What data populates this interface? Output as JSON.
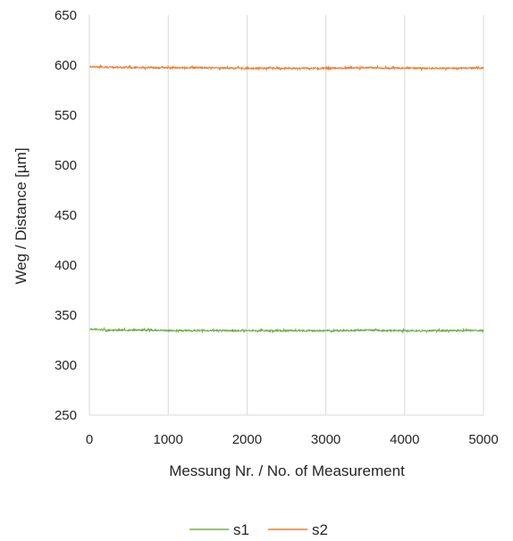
{
  "chart_data": {
    "type": "line",
    "title": "",
    "xlabel": "Messung Nr. / No. of Measurement",
    "ylabel": "Weg / Distance [µm]",
    "xlim": [
      0,
      5000
    ],
    "ylim": [
      250,
      650
    ],
    "xticks": [
      0,
      1000,
      2000,
      3000,
      4000,
      5000
    ],
    "yticks": [
      250,
      300,
      350,
      400,
      450,
      500,
      550,
      600,
      650
    ],
    "grid": "vertical",
    "legend": "bottom",
    "series": [
      {
        "name": "s1",
        "color": "#70ad47",
        "x": [
          0,
          250,
          500,
          750,
          1000,
          1250,
          1500,
          1750,
          2000,
          2250,
          2500,
          2750,
          3000,
          3250,
          3500,
          3750,
          4000,
          4250,
          4500,
          4750,
          5000
        ],
        "y": [
          336,
          335,
          335,
          335,
          334.5,
          334.5,
          334.5,
          334.5,
          334.5,
          334.5,
          334.5,
          334.5,
          334.5,
          334.5,
          335,
          334.5,
          334.5,
          334.5,
          334.5,
          334.5,
          334.5
        ]
      },
      {
        "name": "s2",
        "color": "#ed7d31",
        "x": [
          0,
          250,
          500,
          750,
          1000,
          1250,
          1500,
          1750,
          2000,
          2250,
          2500,
          2750,
          3000,
          3250,
          3500,
          3750,
          4000,
          4250,
          4500,
          4750,
          5000
        ],
        "y": [
          598.5,
          598,
          597.5,
          597.5,
          597.5,
          597.5,
          597.5,
          597,
          597,
          597,
          597,
          597,
          597,
          597,
          597.5,
          597,
          597,
          597,
          597,
          597,
          597
        ]
      }
    ]
  }
}
